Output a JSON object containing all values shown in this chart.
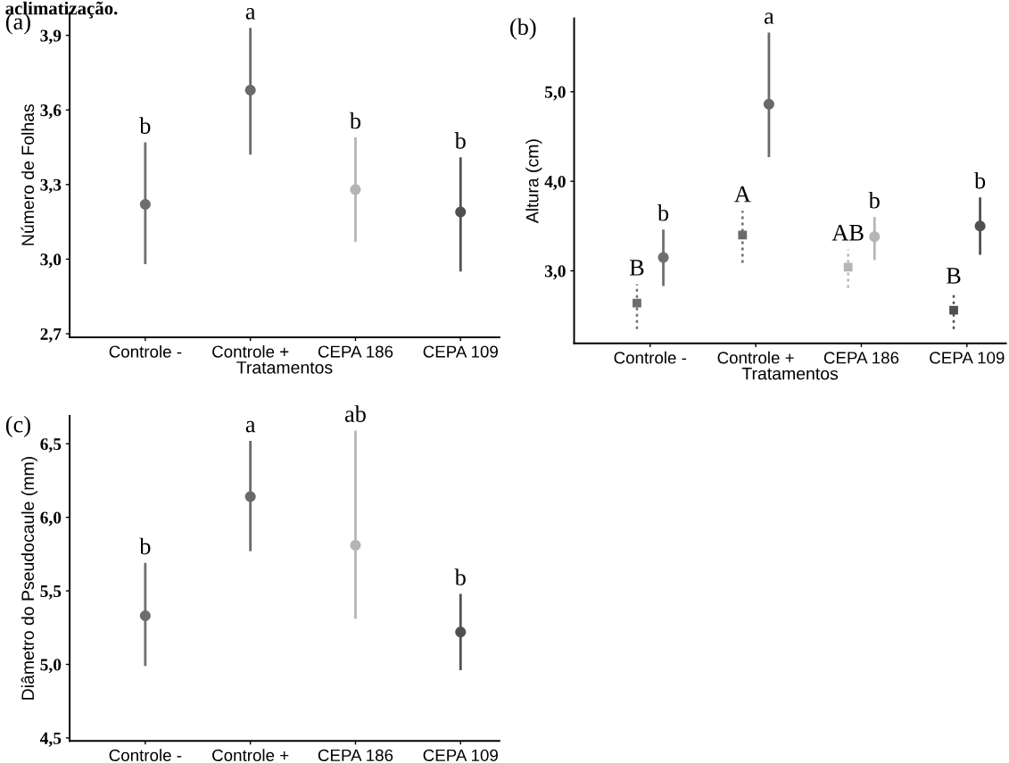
{
  "chart_data": [
    {
      "type": "scatter",
      "title": "(a)",
      "xlabel": "Tratamentos",
      "ylabel": "Número de Folhas",
      "annotations": [
        "aclimatização.",
        {
          "text": "b",
          "x": "Controle -",
          "y": 3.47
        },
        {
          "text": "a",
          "x": "Controle +",
          "y": 3.93
        },
        {
          "text": "b",
          "x": "CEPA 186",
          "y": 3.49
        },
        {
          "text": "b",
          "x": "CEPA 109",
          "y": 3.41
        }
      ],
      "categories": [
        "Controle -",
        "Controle +",
        "CEPA 186",
        "CEPA 109"
      ],
      "series": [
        {
          "colors": [
            "#6e6e6e",
            "#6a6a6a",
            "#b5b5b5",
            "#505050"
          ],
          "values": [
            3.22,
            3.68,
            3.28,
            3.19
          ],
          "errors": [
            [
              2.98,
              3.47
            ],
            [
              3.42,
              3.93
            ],
            [
              3.07,
              3.49
            ],
            [
              2.95,
              3.41
            ]
          ],
          "marker": "circle",
          "line_style": "solid"
        }
      ],
      "ylim": [
        2.686,
        3.99
      ],
      "yticks": [
        {
          "value": 2.7,
          "label": "2,7"
        },
        {
          "value": 3.0,
          "label": "3,0"
        },
        {
          "value": 3.3,
          "label": "3,3"
        },
        {
          "value": 3.6,
          "label": "3,6"
        },
        {
          "value": 3.9,
          "label": "3,9"
        }
      ],
      "grid": false
    },
    {
      "type": "scatter",
      "title": "(b)",
      "xlabel": "Tratamentos",
      "ylabel": "Altura (cm)",
      "categories": [
        "Controle -",
        "Controle +",
        "CEPA 186",
        "CEPA 109"
      ],
      "series": [
        {
          "colors": [
            "#6e6e6e",
            "#6a6a6a",
            "#b5b5b5",
            "#505050"
          ],
          "values": [
            2.64,
            3.4,
            3.04,
            2.56
          ],
          "errors": [
            [
              2.35,
              2.85
            ],
            [
              3.09,
              3.67
            ],
            [
              2.81,
              3.24
            ],
            [
              2.35,
              2.76
            ]
          ],
          "value_labels": [
            "B",
            "A",
            "AB",
            "B"
          ],
          "marker": "square",
          "line_style": "dotted"
        },
        {
          "colors": [
            "#6e6e6e",
            "#6a6a6a",
            "#b5b5b5",
            "#505050"
          ],
          "values": [
            3.15,
            4.86,
            3.38,
            3.5
          ],
          "errors": [
            [
              2.83,
              3.46
            ],
            [
              4.27,
              5.66
            ],
            [
              3.12,
              3.6
            ],
            [
              3.18,
              3.82
            ]
          ],
          "value_labels": [
            "b",
            "a",
            "b",
            "b"
          ],
          "marker": "circle",
          "line_style": "solid"
        }
      ],
      "ylim": [
        2.19,
        5.82
      ],
      "yticks": [
        {
          "value": 3.0,
          "label": "3,0"
        },
        {
          "value": 4.0,
          "label": "4,0"
        },
        {
          "value": 5.0,
          "label": "5,0"
        }
      ],
      "grid": false
    },
    {
      "type": "scatter",
      "title": "(c)",
      "ylabel": "Diâmetro do Pseudocaule (mm)",
      "annotations": [
        {
          "text": "b",
          "x": "Controle -",
          "y": 5.69
        },
        {
          "text": "a",
          "x": "Controle +",
          "y": 6.52
        },
        {
          "text": "ab",
          "x": "CEPA 186",
          "y": 6.59
        },
        {
          "text": "b",
          "x": "CEPA 109",
          "y": 5.48
        }
      ],
      "categories": [
        "Controle -",
        "Controle +",
        "CEPA 186",
        "CEPA 109"
      ],
      "series": [
        {
          "colors": [
            "#6e6e6e",
            "#6a6a6a",
            "#b5b5b5",
            "#505050"
          ],
          "values": [
            5.33,
            6.14,
            5.81,
            5.22
          ],
          "errors": [
            [
              4.99,
              5.69
            ],
            [
              5.77,
              6.52
            ],
            [
              5.31,
              6.59
            ],
            [
              4.96,
              5.48
            ]
          ],
          "marker": "circle",
          "line_style": "solid"
        }
      ],
      "ylim": [
        4.48,
        6.69
      ],
      "yticks": [
        {
          "value": 4.5,
          "label": "4,5"
        },
        {
          "value": 5.0,
          "label": "5,0"
        },
        {
          "value": 5.5,
          "label": "5,5"
        },
        {
          "value": 6.0,
          "label": "6,0"
        },
        {
          "value": 6.5,
          "label": "6,5"
        }
      ],
      "grid": false
    }
  ]
}
